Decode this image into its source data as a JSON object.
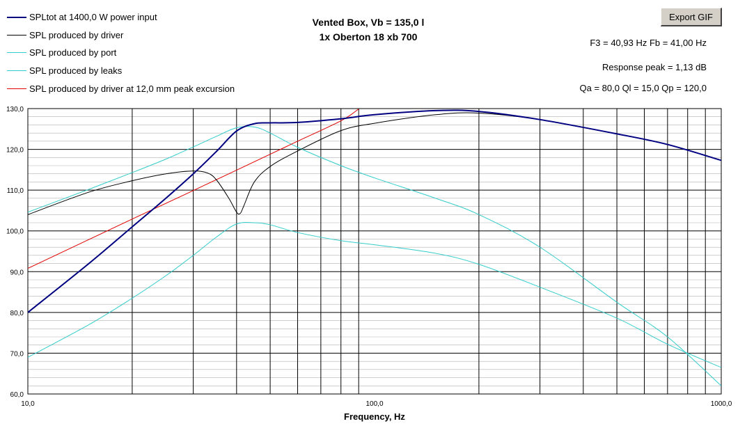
{
  "title_line1": "Vented Box, Vb = 135,0 l",
  "title_line2": "1x Oberton 18 xb 700",
  "export_button": "Export GIF",
  "info": {
    "f3_fb": "F3 = 40,93 Hz  Fb = 41,00 Hz",
    "response_peak": "Response peak = 1,13 dB",
    "q_values": "Qa = 80,0  Ql = 15,0  Qp = 120,0"
  },
  "legend": [
    {
      "label": "SPLtot at 1400,0 W power input",
      "color": "#000080",
      "width": 2
    },
    {
      "label": "SPL produced by driver",
      "color": "#000000",
      "width": 1
    },
    {
      "label": "SPL produced by port",
      "color": "#33cccc",
      "width": 1
    },
    {
      "label": "SPL produced by leaks",
      "color": "#33cccc",
      "width": 1
    },
    {
      "label": "SPL produced by driver at 12,0 mm peak excursion",
      "color": "#e00000",
      "width": 1
    }
  ],
  "chart_data": {
    "type": "line",
    "xlabel": "Frequency, Hz",
    "ylabel": "",
    "x_scale": "log",
    "xlim": [
      10,
      1000
    ],
    "ylim": [
      60,
      130
    ],
    "x_ticks": [
      10,
      100,
      1000
    ],
    "x_tick_labels": [
      "10,0",
      "100,0",
      "1000,0"
    ],
    "y_ticks": [
      60,
      70,
      80,
      90,
      100,
      110,
      120,
      130
    ],
    "y_tick_labels": [
      "60,0",
      "70,0",
      "80,0",
      "90,0",
      "100,0",
      "110,0",
      "120,0",
      "130,0"
    ],
    "grid": true,
    "series": [
      {
        "name": "SPLtot at 1400,0 W power input",
        "color": "#000080",
        "x": [
          10,
          15,
          20,
          25,
          30,
          35,
          40,
          45,
          50,
          60,
          80,
          100,
          150,
          200,
          300,
          500,
          700,
          1000
        ],
        "y": [
          80.0,
          92.0,
          101.0,
          108.0,
          114.0,
          119.5,
          124.5,
          126.3,
          126.5,
          126.6,
          127.5,
          128.5,
          129.5,
          129.3,
          127.3,
          123.8,
          121.2,
          117.3
        ]
      },
      {
        "name": "SPL produced by driver",
        "color": "#000000",
        "x": [
          10,
          15,
          20,
          25,
          30,
          33,
          35,
          38,
          40,
          41,
          42,
          45,
          50,
          60,
          80,
          100,
          150,
          200,
          300,
          500,
          700,
          1000
        ],
        "y": [
          104.0,
          109.5,
          112.3,
          114.0,
          114.7,
          114.2,
          112.5,
          108.0,
          104.6,
          104.3,
          106.2,
          112.0,
          115.8,
          119.6,
          124.6,
          126.4,
          128.5,
          128.9,
          127.3,
          123.8,
          121.2,
          117.3
        ]
      },
      {
        "name": "SPL produced by port",
        "color": "#33cccc",
        "x": [
          10,
          15,
          20,
          25,
          30,
          35,
          40,
          45,
          50,
          60,
          80,
          100,
          150,
          200,
          300,
          500,
          700,
          1000
        ],
        "y": [
          104.6,
          110.2,
          114.3,
          117.6,
          120.6,
          123.2,
          125.3,
          125.5,
          124.0,
          120.5,
          116.0,
          113.0,
          108.0,
          104.0,
          96.0,
          82.5,
          74.0,
          62.0
        ]
      },
      {
        "name": "SPL produced by leaks",
        "color": "#33cccc",
        "x": [
          10,
          15,
          20,
          25,
          30,
          35,
          40,
          45,
          50,
          60,
          80,
          100,
          150,
          200,
          300,
          500,
          700,
          1000
        ],
        "y": [
          69.0,
          77.0,
          83.5,
          89.0,
          94.0,
          98.5,
          101.7,
          102.0,
          101.5,
          99.6,
          97.6,
          96.6,
          94.5,
          91.8,
          86.2,
          78.6,
          72.2,
          66.5
        ]
      },
      {
        "name": "SPL produced by driver at 12,0 mm peak excursion",
        "color": "#e00000",
        "x": [
          10,
          20,
          30,
          40,
          50,
          60,
          80,
          90
        ],
        "y": [
          90.8,
          102.9,
          109.9,
          114.9,
          118.8,
          122.0,
          127.0,
          129.9
        ]
      }
    ]
  }
}
